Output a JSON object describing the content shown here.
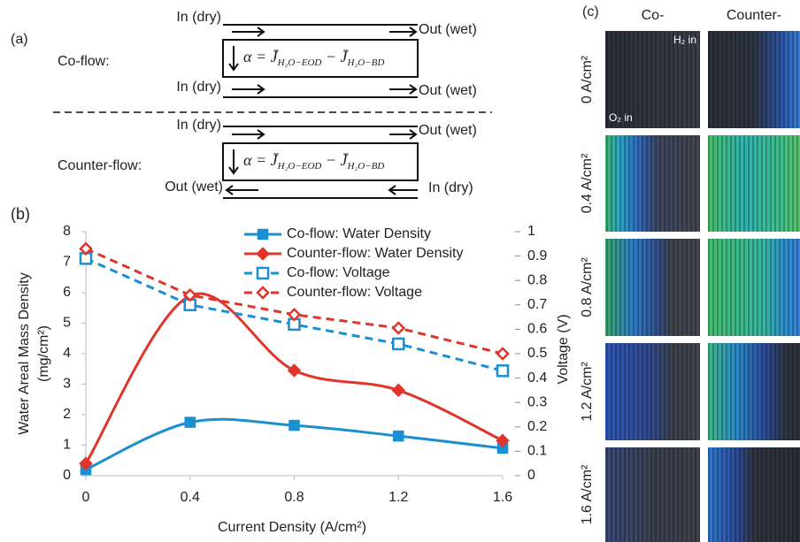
{
  "panel_a": {
    "label": "(a)",
    "formula": {
      "lhs": "α = ",
      "term1": "J̄",
      "sub1": "H₂O−EOD",
      "minus": " − ",
      "term2": "J̄",
      "sub2": "H₂O−BD"
    },
    "co_flow": {
      "title": "Co-flow:",
      "in_top": "In (dry)",
      "out_top": "Out (wet)",
      "in_bottom": "In (dry)",
      "out_bottom": "Out (wet)"
    },
    "counter_flow": {
      "title": "Counter-flow:",
      "in_top": "In (dry)",
      "out_top": "Out (wet)",
      "out_bottom": "Out (wet)",
      "in_bottom": "In (dry)"
    }
  },
  "chart_data": {
    "type": "line",
    "label": "(b)",
    "xlabel": "Current Density (A/cm²)",
    "ylabel": [
      "Water Areal Mass Density",
      "(mg/cm²)"
    ],
    "y2label": "Voltage (V)",
    "x": [
      0,
      0.4,
      0.8,
      1.2,
      1.6
    ],
    "xlim": [
      0,
      1.6
    ],
    "xticks": [
      0,
      0.4,
      0.8,
      1.2,
      1.6
    ],
    "ylim": [
      0,
      8
    ],
    "yticks": [
      0,
      1,
      2,
      3,
      4,
      5,
      6,
      7,
      8
    ],
    "y2lim": [
      0,
      1
    ],
    "y2ticks": [
      0,
      0.1,
      0.2,
      0.3,
      0.4,
      0.5,
      0.6,
      0.7,
      0.8,
      0.9,
      1
    ],
    "series": [
      {
        "name": "Co-flow: Water Density",
        "color": "#1b8fd2",
        "style": "solid",
        "smooth": true,
        "marker": "square",
        "filled": true,
        "values": [
          0.2,
          1.75,
          1.65,
          1.3,
          0.9
        ]
      },
      {
        "name": "Counter-flow: Water Density",
        "color": "#e0352b",
        "style": "solid",
        "smooth": true,
        "marker": "diamond",
        "filled": true,
        "values": [
          0.4,
          5.9,
          3.45,
          2.8,
          1.15
        ]
      },
      {
        "name": "Co-flow: Voltage",
        "color": "#1b8fd2",
        "style": "dashed",
        "smooth": false,
        "marker": "square",
        "filled": false,
        "axis": "y2",
        "values": [
          0.89,
          0.7,
          0.62,
          0.54,
          0.43
        ]
      },
      {
        "name": "Counter-flow: Voltage",
        "color": "#e0352b",
        "style": "dashed",
        "smooth": false,
        "marker": "diamond",
        "filled": false,
        "axis": "y2",
        "values": [
          0.93,
          0.74,
          0.66,
          0.605,
          0.5
        ]
      }
    ]
  },
  "panel_c": {
    "label": "(c)",
    "columns": [
      "Co-",
      "Counter-"
    ],
    "rows": [
      "0 A/cm²",
      "0.4 A/cm²",
      "0.8 A/cm²",
      "1.2 A/cm²",
      "1.6 A/cm²"
    ],
    "h2_in": "H₂ in",
    "o2_in": "O₂ in"
  }
}
